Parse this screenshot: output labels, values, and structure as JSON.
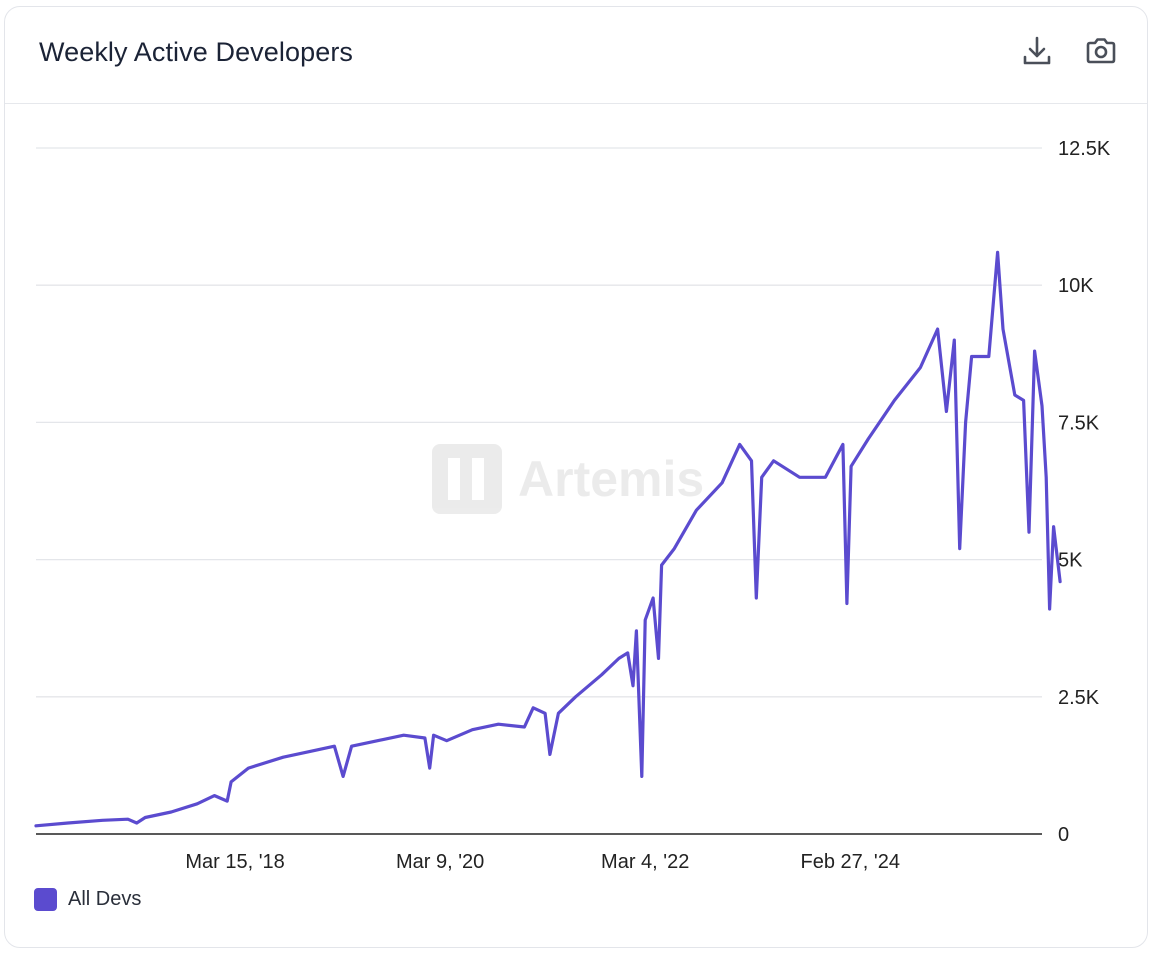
{
  "header": {
    "title": "Weekly Active Developers",
    "download_icon": "download-icon",
    "camera_icon": "camera-icon"
  },
  "watermark": {
    "text": "Artemis"
  },
  "colors": {
    "series": "#5b4bcf",
    "grid": "#e4e6ea",
    "axis": "#222222",
    "text": "#1b2336"
  },
  "chart_data": {
    "type": "line",
    "title": "Weekly Active Developers",
    "xlabel": "",
    "ylabel": "",
    "x_tick_labels": [
      {
        "date": "2018-03-15",
        "label": "Mar 15, '18"
      },
      {
        "date": "2020-03-09",
        "label": "Mar 9, '20"
      },
      {
        "date": "2022-03-04",
        "label": "Mar 4, '22"
      },
      {
        "date": "2024-02-27",
        "label": "Feb 27, '24"
      }
    ],
    "y_ticks": [
      {
        "value": 0,
        "label": "0"
      },
      {
        "value": 2500,
        "label": "2.5K"
      },
      {
        "value": 5000,
        "label": "5K"
      },
      {
        "value": 7500,
        "label": "7.5K"
      },
      {
        "value": 10000,
        "label": "10K"
      },
      {
        "value": 12500,
        "label": "12.5K"
      }
    ],
    "ylim": [
      0,
      12500
    ],
    "xlim": [
      "2016-04-10",
      "2026-01-05"
    ],
    "grid": true,
    "legend": "bottom-left",
    "series": [
      {
        "name": "All Devs",
        "color": "#5b4bcf",
        "points": [
          [
            "2016-04-10",
            150
          ],
          [
            "2016-08-01",
            200
          ],
          [
            "2016-12-01",
            250
          ],
          [
            "2017-03-01",
            270
          ],
          [
            "2017-04-01",
            200
          ],
          [
            "2017-05-01",
            300
          ],
          [
            "2017-08-01",
            400
          ],
          [
            "2017-11-01",
            550
          ],
          [
            "2018-01-01",
            700
          ],
          [
            "2018-02-15",
            600
          ],
          [
            "2018-03-01",
            950
          ],
          [
            "2018-05-01",
            1200
          ],
          [
            "2018-09-01",
            1400
          ],
          [
            "2018-12-01",
            1500
          ],
          [
            "2019-03-01",
            1600
          ],
          [
            "2019-04-01",
            1050
          ],
          [
            "2019-05-01",
            1600
          ],
          [
            "2019-08-01",
            1700
          ],
          [
            "2019-11-01",
            1800
          ],
          [
            "2020-01-15",
            1750
          ],
          [
            "2020-02-01",
            1200
          ],
          [
            "2020-02-15",
            1800
          ],
          [
            "2020-04-01",
            1700
          ],
          [
            "2020-07-01",
            1900
          ],
          [
            "2020-10-01",
            2000
          ],
          [
            "2021-01-01",
            1950
          ],
          [
            "2021-02-01",
            2300
          ],
          [
            "2021-03-15",
            2200
          ],
          [
            "2021-04-01",
            1450
          ],
          [
            "2021-05-01",
            2200
          ],
          [
            "2021-07-01",
            2500
          ],
          [
            "2021-10-01",
            2900
          ],
          [
            "2021-12-01",
            3200
          ],
          [
            "2022-01-01",
            3300
          ],
          [
            "2022-01-20",
            2700
          ],
          [
            "2022-02-01",
            3700
          ],
          [
            "2022-02-20",
            1050
          ],
          [
            "2022-03-04",
            3900
          ],
          [
            "2022-04-01",
            4300
          ],
          [
            "2022-04-20",
            3200
          ],
          [
            "2022-05-01",
            4900
          ],
          [
            "2022-06-15",
            5200
          ],
          [
            "2022-09-01",
            5900
          ],
          [
            "2022-12-01",
            6400
          ],
          [
            "2023-02-01",
            7100
          ],
          [
            "2023-03-15",
            6800
          ],
          [
            "2023-04-01",
            4300
          ],
          [
            "2023-04-20",
            6500
          ],
          [
            "2023-06-01",
            6800
          ],
          [
            "2023-09-01",
            6500
          ],
          [
            "2023-12-01",
            6500
          ],
          [
            "2024-02-01",
            7100
          ],
          [
            "2024-02-15",
            4200
          ],
          [
            "2024-03-01",
            6700
          ],
          [
            "2024-05-01",
            7200
          ],
          [
            "2024-08-01",
            7900
          ],
          [
            "2024-11-01",
            8500
          ],
          [
            "2025-01-01",
            9200
          ],
          [
            "2025-02-01",
            7700
          ],
          [
            "2025-03-01",
            9000
          ],
          [
            "2025-03-20",
            5200
          ],
          [
            "2025-04-10",
            7500
          ],
          [
            "2025-05-01",
            8700
          ],
          [
            "2025-07-01",
            8700
          ],
          [
            "2025-08-01",
            10600
          ],
          [
            "2025-08-20",
            9200
          ],
          [
            "2025-10-01",
            8000
          ],
          [
            "2025-11-01",
            7900
          ],
          [
            "2025-11-20",
            5500
          ],
          [
            "2025-12-10",
            8800
          ],
          [
            "2026-01-05",
            7800
          ],
          [
            "2026-01-20",
            6500
          ],
          [
            "2026-02-01",
            4100
          ],
          [
            "2026-02-15",
            5600
          ],
          [
            "2026-03-10",
            4600
          ]
        ]
      }
    ]
  },
  "legend": {
    "items": [
      {
        "label": "All Devs",
        "color": "#5b4bcf"
      }
    ]
  }
}
